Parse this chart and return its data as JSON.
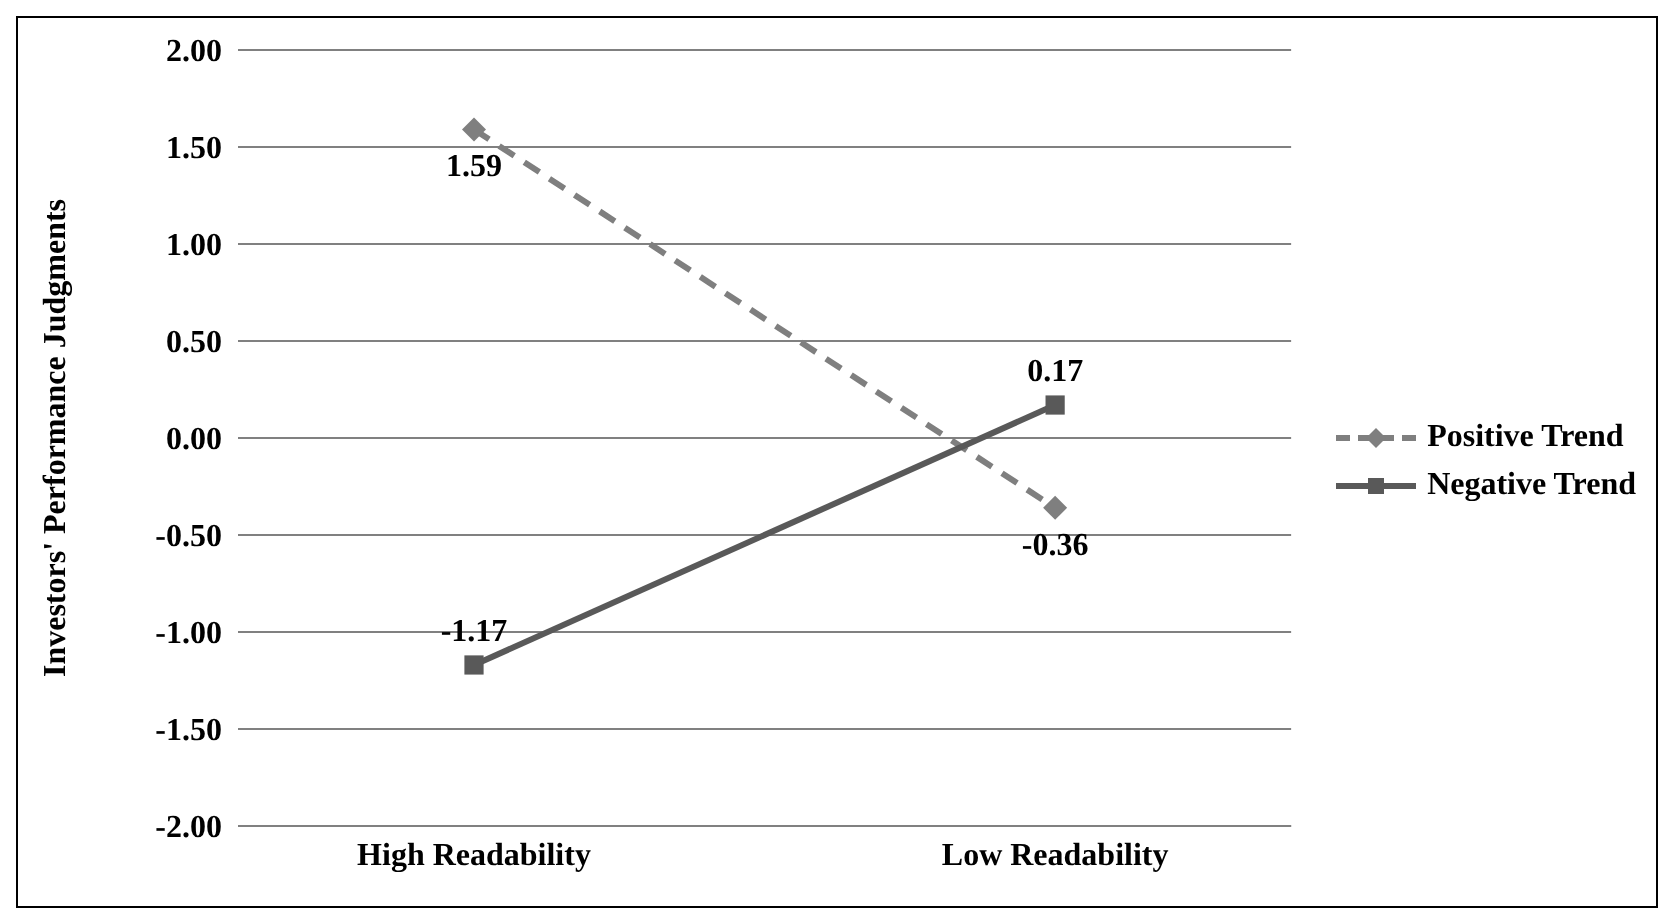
{
  "chart_data": {
    "type": "line",
    "ylabel": "Investors' Performance Judgments",
    "categories": [
      "High Readability",
      "Low Readability"
    ],
    "series": [
      {
        "name": "Positive Trend",
        "color": "#7f7f7f",
        "values": [
          1.59,
          -0.36
        ],
        "marker": "diamond",
        "line_style": "dashed"
      },
      {
        "name": "Negative Trend",
        "color": "#595959",
        "values": [
          -1.17,
          0.17
        ],
        "marker": "square",
        "line_style": "solid"
      }
    ],
    "ylim": [
      -2,
      2
    ],
    "yticks": [
      {
        "value": -2,
        "label": "-2.00"
      },
      {
        "value": -1.5,
        "label": "-1.50"
      },
      {
        "value": -1,
        "label": "-1.00"
      },
      {
        "value": -0.5,
        "label": "-0.50"
      },
      {
        "value": 0,
        "label": "0.00"
      },
      {
        "value": 0.5,
        "label": "0.50"
      },
      {
        "value": 1,
        "label": "1.00"
      },
      {
        "value": 1.5,
        "label": "1.50"
      },
      {
        "value": 2,
        "label": "2.00"
      }
    ],
    "grid": "y",
    "legend": "right",
    "data_labels": true
  }
}
